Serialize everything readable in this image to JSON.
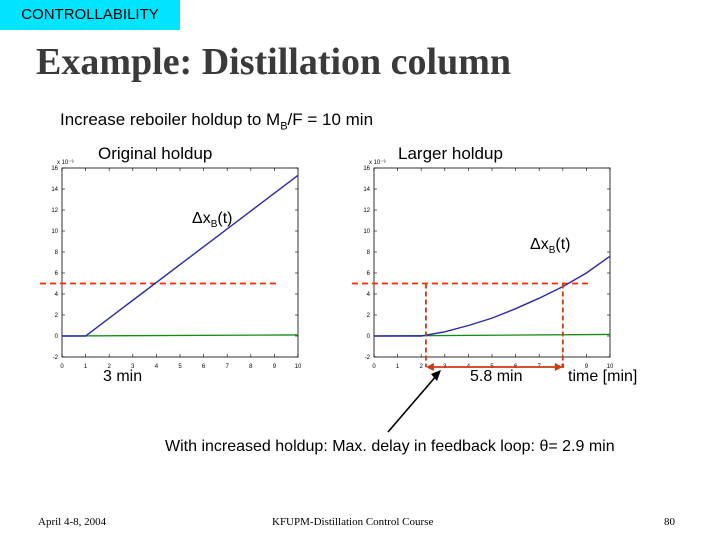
{
  "tag": "CONTROLLABILITY",
  "title": "Example: Distillation column",
  "subtitle_pre": "Increase reboiler holdup to M",
  "subtitle_sub": "B",
  "subtitle_post": "/F = 10 min",
  "colors": {
    "tag_bg": "#00e5ff",
    "response_line": "#2a2aa8",
    "zero_line": "#138a13",
    "reference_dash": "#ff2a00",
    "delay_marker": "#d03a10",
    "arrow": "#000000"
  },
  "chart_data": [
    {
      "type": "line",
      "title": "Original holdup",
      "exponent_label": "x 10⁻³",
      "annotation": "Δx",
      "annotation_sub": "B",
      "annotation_post": "(t)",
      "xlim": [
        0,
        10
      ],
      "ylim": [
        -2,
        16
      ],
      "xticks": [
        "0",
        "1",
        "2",
        "3",
        "4",
        "5",
        "6",
        "7",
        "8",
        "9",
        "10"
      ],
      "yticks": [
        "-2",
        "0",
        "2",
        "4",
        "6",
        "8",
        "10",
        "12",
        "14",
        "16"
      ],
      "series": [
        {
          "x": [
            0,
            1,
            10
          ],
          "y": [
            0,
            0,
            15.3
          ]
        },
        {
          "x": [
            0,
            10
          ],
          "y": [
            0,
            0.1
          ]
        }
      ],
      "reference_y": 5,
      "delay_markers_x": [],
      "delay_label": "3 min"
    },
    {
      "type": "line",
      "title": "Larger holdup",
      "exponent_label": "x 10⁻³",
      "annotation": "Δx",
      "annotation_sub": "B",
      "annotation_post": "(t)",
      "xlim": [
        0,
        10
      ],
      "ylim": [
        -2,
        16
      ],
      "xticks": [
        "0",
        "1",
        "2",
        "3",
        "4",
        "5",
        "6",
        "7",
        "8",
        "9",
        "10"
      ],
      "yticks": [
        "-2",
        "0",
        "2",
        "4",
        "6",
        "8",
        "10",
        "12",
        "14",
        "16"
      ],
      "series": [
        {
          "x": [
            0,
            2,
            3,
            4,
            5,
            6,
            7,
            8,
            9,
            10
          ],
          "y": [
            0,
            0,
            0.4,
            1.0,
            1.7,
            2.6,
            3.6,
            4.7,
            6.0,
            7.6
          ]
        },
        {
          "x": [
            0,
            10
          ],
          "y": [
            0,
            0.15
          ]
        }
      ],
      "reference_y": 5,
      "delay_markers_x": [
        2.2,
        8
      ],
      "delay_label": "5.8 min",
      "xlabel": "time [min]"
    }
  ],
  "note_pre": "With increased holdup: Max. delay in feedback loop: ",
  "note_symbol": "θ",
  "note_post": "= 2.9 min",
  "footer": {
    "date": "April 4-8, 2004",
    "course": "KFUPM-Distillation Control Course",
    "page": "80"
  }
}
